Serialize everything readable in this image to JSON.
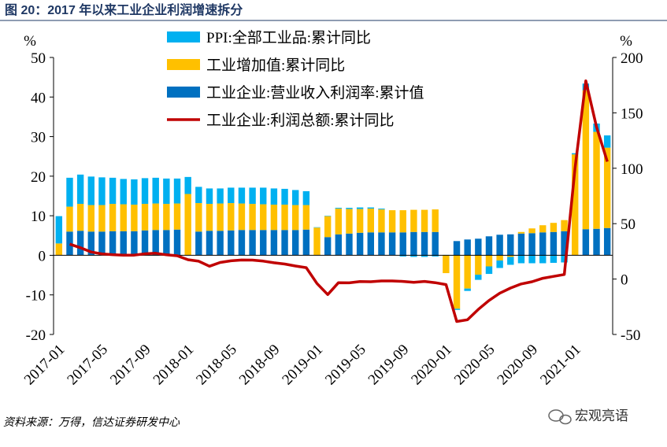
{
  "chart_data": {
    "type": "bar",
    "title": "图 20：2017 年以来工业企业利润增速拆分",
    "ylabel": "%",
    "y2label": "%",
    "source": "资料来源：万得，信达证券研发中心",
    "watermark": "宏观亮语",
    "categories": [
      "2017-01",
      null,
      null,
      null,
      "2017-05",
      null,
      null,
      null,
      "2017-09",
      null,
      null,
      null,
      "2018-01",
      null,
      null,
      null,
      "2018-05",
      null,
      null,
      null,
      "2018-09",
      null,
      null,
      null,
      "2019-01",
      null,
      null,
      null,
      "2019-05",
      null,
      null,
      null,
      "2019-09",
      null,
      null,
      null,
      "2020-01",
      null,
      null,
      null,
      "2020-05",
      null,
      null,
      null,
      "2020-09",
      null,
      null,
      null,
      "2021-01",
      null,
      null,
      null
    ],
    "ylim": [
      -20,
      50
    ],
    "yticks": [
      -20,
      -10,
      0,
      10,
      20,
      30,
      40,
      50
    ],
    "y2lim": [
      -50,
      200
    ],
    "y2ticks": [
      -50,
      0,
      50,
      100,
      150,
      200
    ],
    "stacked": true,
    "series": [
      {
        "name": "PPI:全部工业品:累计同比",
        "color": "#00b0f0",
        "type": "bar",
        "values": [
          6.9,
          7.3,
          7.4,
          7.2,
          7.0,
          6.6,
          6.4,
          6.4,
          6.5,
          6.5,
          6.4,
          6.3,
          4.3,
          4.1,
          3.9,
          3.8,
          3.9,
          4.0,
          4.1,
          4.2,
          4.1,
          4.0,
          3.8,
          3.5,
          0.1,
          0.1,
          0.2,
          0.3,
          0.4,
          0.3,
          0.2,
          0.0,
          -0.3,
          -0.4,
          -0.4,
          -0.3,
          0.1,
          -0.3,
          -0.6,
          -1.3,
          -1.9,
          -1.9,
          -2.0,
          -2.0,
          -2.0,
          -2.0,
          -1.9,
          -1.8,
          0.3,
          1.7,
          2.1,
          3.1
        ]
      },
      {
        "name": "工业增加值:累计同比",
        "color": "#ffc000",
        "type": "bar",
        "values": [
          3.0,
          6.3,
          6.8,
          6.7,
          6.7,
          6.9,
          6.8,
          6.7,
          6.7,
          6.7,
          6.6,
          6.6,
          15.5,
          7.2,
          6.8,
          6.9,
          6.9,
          6.7,
          6.6,
          6.5,
          6.4,
          6.4,
          6.3,
          6.2,
          7.0,
          5.3,
          6.5,
          6.2,
          6.0,
          6.0,
          5.8,
          5.6,
          5.6,
          5.6,
          5.6,
          5.7,
          -4.5,
          -13.5,
          -8.4,
          -4.9,
          -2.8,
          -1.3,
          -0.4,
          0.4,
          1.2,
          1.8,
          2.3,
          2.8,
          25.5,
          35.1,
          24.5,
          20.3
        ]
      },
      {
        "name": "工业企业:营业收入利润率:累计值",
        "color": "#0070c0",
        "type": "bar",
        "values": [
          null,
          6.0,
          6.2,
          6.0,
          6.0,
          6.1,
          6.1,
          6.1,
          6.3,
          6.4,
          6.4,
          6.5,
          null,
          6.0,
          6.2,
          6.2,
          6.3,
          6.4,
          6.4,
          6.4,
          6.4,
          6.4,
          6.4,
          6.5,
          null,
          4.6,
          5.3,
          5.5,
          5.7,
          5.8,
          5.8,
          5.8,
          5.8,
          5.9,
          5.9,
          5.9,
          null,
          3.6,
          4.0,
          4.2,
          4.8,
          5.2,
          5.3,
          5.5,
          5.6,
          5.8,
          5.9,
          6.1,
          null,
          6.6,
          6.7,
          6.9
        ]
      },
      {
        "name": "工业企业:利润总额:累计同比",
        "color": "#c00000",
        "type": "line",
        "axis": "y2",
        "values": [
          null,
          31.5,
          28.3,
          24.4,
          22.7,
          22.0,
          21.6,
          21.6,
          22.8,
          23.3,
          21.9,
          21.0,
          17.5,
          16.1,
          11.6,
          15.0,
          16.5,
          17.2,
          17.1,
          16.2,
          14.7,
          13.6,
          11.8,
          10.3,
          -4,
          -14.0,
          -3.3,
          -3.4,
          -2.3,
          -2.4,
          -1.7,
          -1.7,
          -2.1,
          -2.9,
          -2.1,
          -3.3,
          -5,
          -38.3,
          -36.7,
          -27.4,
          -19.3,
          -12.8,
          -8.1,
          -4.4,
          -2.4,
          0.7,
          2.4,
          4.1,
          100,
          178.9,
          137.3,
          106.0
        ]
      }
    ]
  }
}
